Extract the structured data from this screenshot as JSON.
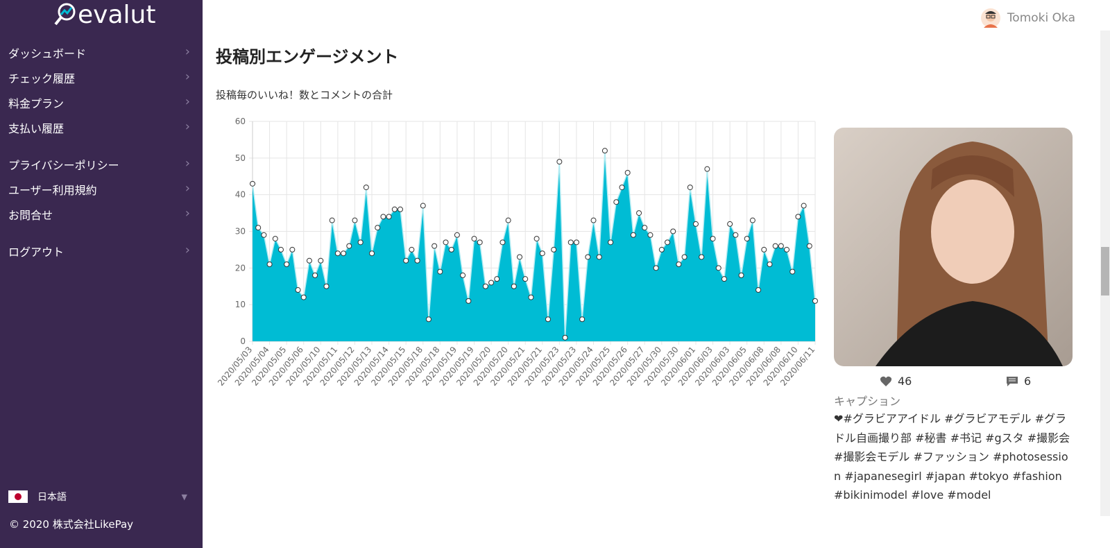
{
  "app": {
    "logo": "evalut",
    "user": "Tomoki Oka",
    "language": "日本語",
    "copyright": "© 2020 株式会社LikePay",
    "menu": [
      "ダッシュボード",
      "チェック履歴",
      "料金プラン",
      "支払い履歴",
      "プライバシーポリシー",
      "ユーザー利用規約",
      "お問合せ",
      "ログアウト"
    ]
  },
  "post": {
    "likes": 46,
    "comments": 6,
    "caption_label": "キャプション",
    "caption": "❤#グラビアアイドル #グラビアモデル #グラドル自画撮り部 #秘書 #书记 #gスタ #撮影会 #撮影会モデル #ファッション #photosession #japanesegirl #japan #tokyo #fashion #bikinimodel #love #model"
  },
  "chart_data": {
    "type": "area",
    "title": "投稿別エンゲージメント",
    "subtitle": "投稿毎のいいね！数とコメントの合計",
    "color": "#00bcd4",
    "line_color": "#b2ebf2",
    "grid": true,
    "ylim": [
      0,
      60
    ],
    "yticks": [
      0,
      10,
      20,
      30,
      40,
      50,
      60
    ],
    "categories": [
      "2020/05/03",
      null,
      null,
      "2020/05/04",
      null,
      null,
      "2020/05/05",
      null,
      null,
      "2020/05/06",
      null,
      null,
      "2020/05/10",
      null,
      null,
      "2020/05/11",
      null,
      null,
      "2020/05/12",
      null,
      null,
      "2020/05/13",
      null,
      null,
      "2020/05/14",
      null,
      null,
      "2020/05/15",
      null,
      null,
      "2020/05/18",
      null,
      null,
      "2020/05/18",
      null,
      null,
      "2020/05/19",
      null,
      null,
      "2020/05/19",
      null,
      null,
      "2020/05/20",
      null,
      null,
      "2020/05/20",
      null,
      null,
      "2020/05/21",
      null,
      null,
      "2020/05/21",
      null,
      null,
      "2020/05/23",
      null,
      null,
      "2020/05/23",
      null,
      null,
      "2020/05/24",
      null,
      null,
      "2020/05/25",
      null,
      null,
      "2020/05/26",
      null,
      null,
      "2020/05/27",
      null,
      null,
      "2020/05/30",
      null,
      null,
      "2020/05/30",
      null,
      null,
      "2020/06/01",
      null,
      null,
      "2020/06/03",
      null,
      null,
      "2020/06/03",
      null,
      null,
      "2020/06/05",
      null,
      null,
      "2020/06/08",
      null,
      null,
      "2020/06/08",
      null,
      null,
      "2020/06/10",
      null,
      null,
      "2020/06/11"
    ],
    "values": [
      43,
      31,
      29,
      21,
      28,
      25,
      21,
      25,
      14,
      12,
      22,
      18,
      22,
      15,
      33,
      24,
      24,
      26,
      33,
      27,
      42,
      24,
      31,
      34,
      34,
      36,
      36,
      22,
      25,
      22,
      37,
      6,
      26,
      19,
      27,
      25,
      29,
      18,
      11,
      28,
      27,
      15,
      16,
      17,
      27,
      33,
      15,
      23,
      17,
      12,
      28,
      24,
      6,
      25,
      49,
      1,
      27,
      27,
      6,
      23,
      33,
      23,
      52,
      27,
      38,
      42,
      46,
      29,
      35,
      31,
      29,
      20,
      25,
      27,
      30,
      21,
      23,
      42,
      32,
      23,
      47,
      28,
      20,
      17,
      32,
      29,
      18,
      28,
      33,
      14,
      25,
      21,
      26,
      26,
      25,
      19,
      34,
      37,
      26,
      11
    ]
  }
}
